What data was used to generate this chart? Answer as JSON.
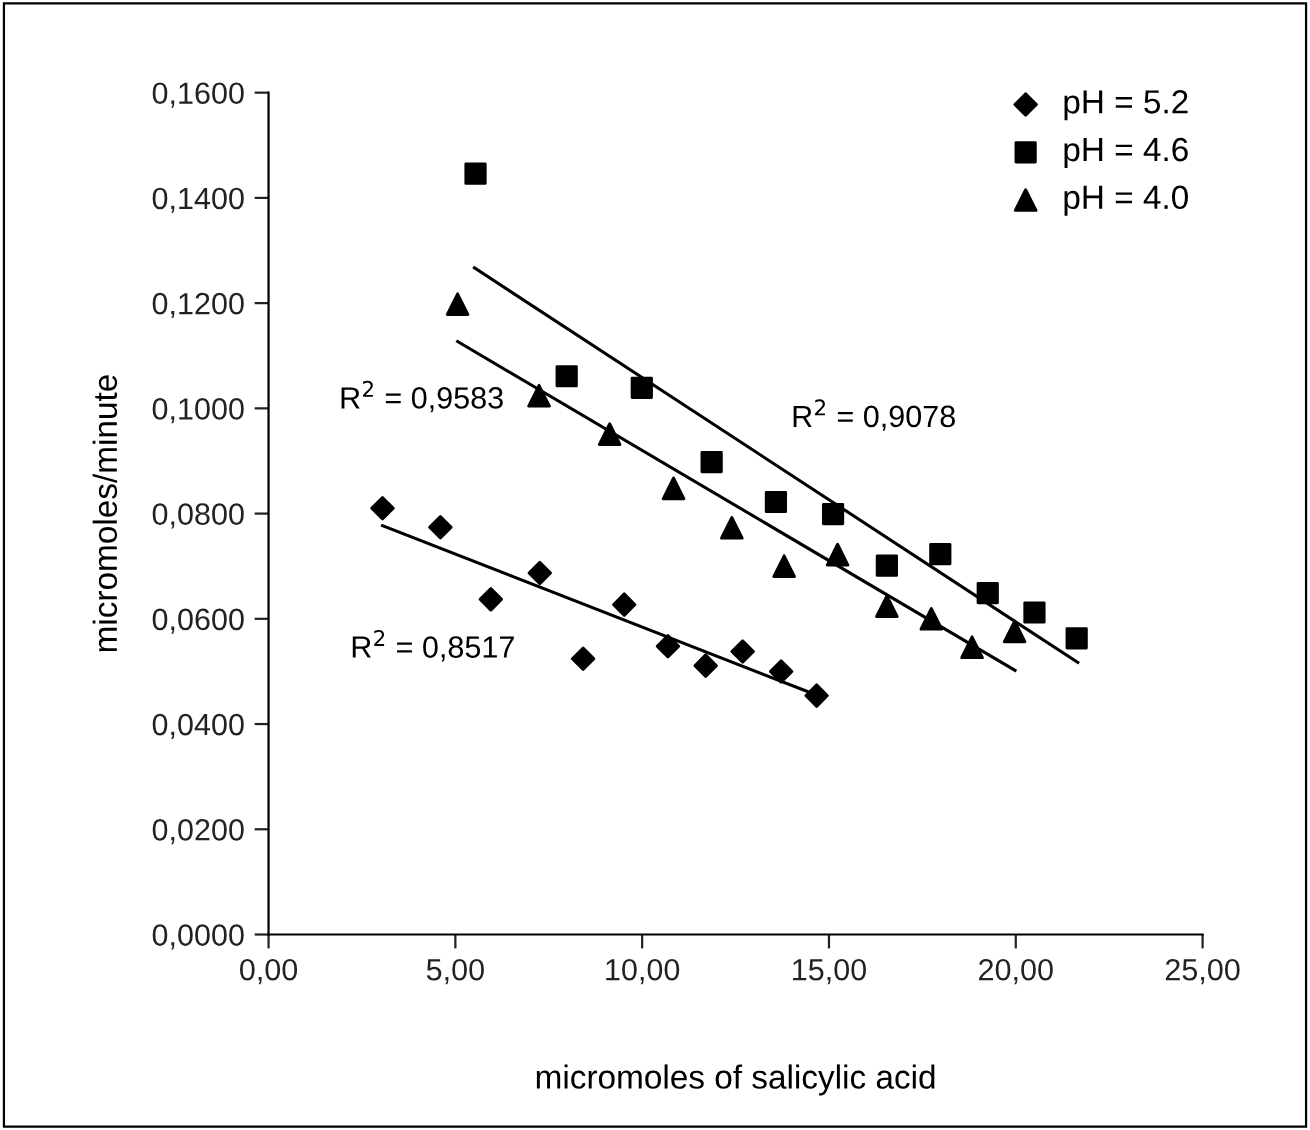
{
  "chart_data": {
    "type": "scatter",
    "xlabel": "micromoles of salicylic acid",
    "ylabel": "micromoles/minute",
    "xlim": [
      0,
      25
    ],
    "ylim": [
      0,
      0.16
    ],
    "xticks": [
      {
        "value": 0,
        "label": "0,00"
      },
      {
        "value": 5,
        "label": "5,00"
      },
      {
        "value": 10,
        "label": "10,00"
      },
      {
        "value": 15,
        "label": "15,00"
      },
      {
        "value": 20,
        "label": "20,00"
      },
      {
        "value": 25,
        "label": "25,00"
      }
    ],
    "yticks": [
      {
        "value": 0,
        "label": "0,0000"
      },
      {
        "value": 0.02,
        "label": "0,0200"
      },
      {
        "value": 0.04,
        "label": "0,0400"
      },
      {
        "value": 0.06,
        "label": "0,0600"
      },
      {
        "value": 0.08,
        "label": "0,0800"
      },
      {
        "value": 0.1,
        "label": "0,1000"
      },
      {
        "value": 0.12,
        "label": "0,1200"
      },
      {
        "value": 0.14,
        "label": "0,1400"
      },
      {
        "value": 0.16,
        "label": "0,1600"
      }
    ],
    "grid": false,
    "legend": "top right",
    "series": [
      {
        "name": "pH = 5.2",
        "marker": "diamond",
        "color": "#000000",
        "x": [
          3.05,
          4.6,
          5.95,
          7.26,
          8.42,
          9.52,
          10.69,
          11.7,
          12.69,
          13.72,
          14.67
        ],
        "values": [
          0.081,
          0.0774,
          0.0637,
          0.0687,
          0.0524,
          0.0627,
          0.0548,
          0.0511,
          0.0538,
          0.05,
          0.0454
        ]
      },
      {
        "name": "pH = 4.6",
        "marker": "square",
        "color": "#000000",
        "x": [
          5.54,
          7.98,
          9.99,
          11.86,
          13.58,
          15.11,
          16.55,
          17.98,
          19.25,
          20.5,
          21.63
        ],
        "values": [
          0.1446,
          0.1061,
          0.1039,
          0.0898,
          0.0822,
          0.0799,
          0.0701,
          0.0723,
          0.0649,
          0.0612,
          0.0563
        ]
      },
      {
        "name": "pH = 4.0",
        "marker": "triangle",
        "color": "#000000",
        "x": [
          5.06,
          7.24,
          9.13,
          10.84,
          12.4,
          13.8,
          15.23,
          16.55,
          17.74,
          18.83,
          19.97
        ],
        "values": [
          0.1198,
          0.1024,
          0.0951,
          0.0848,
          0.0773,
          0.07,
          0.0722,
          0.0624,
          0.06,
          0.0546,
          0.0576
        ]
      },
      {
        "type": "line",
        "marker": "none",
        "line_style": "solid",
        "color": "#000000",
        "x": [
          3.05,
          14.49
        ],
        "values": [
          0.0777,
          0.046
        ]
      },
      {
        "type": "line",
        "marker": "none",
        "line_style": "solid",
        "color": "#000000",
        "x": [
          5.51,
          21.66
        ],
        "values": [
          0.1267,
          0.0517
        ]
      },
      {
        "type": "line",
        "marker": "none",
        "line_style": "solid",
        "color": "#000000",
        "x": [
          5.06,
          19.98
        ],
        "values": [
          0.1127,
          0.0502
        ]
      }
    ],
    "annotations": [
      "R$^{2}$ = 0,9583",
      "R$^{2}$ = 0,9078",
      "R$^{2}$ = 0,8517"
    ]
  }
}
